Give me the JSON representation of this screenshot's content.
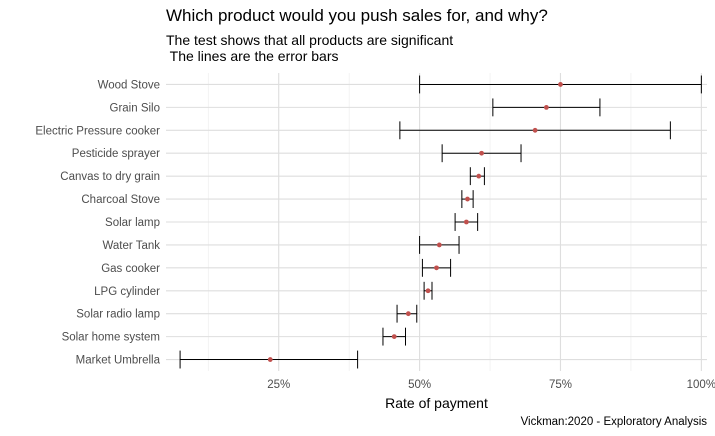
{
  "chart_data": {
    "type": "errorbar",
    "title": "Which product would you push sales for, and why?",
    "subtitle": "The test shows that all products are significant\n The lines are the error bars",
    "xlabel": "Rate of payment",
    "ylabel": "",
    "caption": "Vickman:2020 - Exploratory Analysis",
    "xlim": [
      0.05,
      1.01
    ],
    "xticks": [
      0.25,
      0.5,
      0.75,
      1.0
    ],
    "xtick_labels": [
      "25%",
      "50%",
      "75%",
      "100%"
    ],
    "grid": true,
    "point_color": "#c0504d",
    "products": [
      {
        "name": "Wood Stove",
        "estimate": 0.75,
        "lower": 0.5,
        "upper": 1.0
      },
      {
        "name": "Grain Silo",
        "estimate": 0.725,
        "lower": 0.63,
        "upper": 0.82
      },
      {
        "name": "Electric Pressure cooker",
        "estimate": 0.705,
        "lower": 0.465,
        "upper": 0.945
      },
      {
        "name": "Pesticide sprayer",
        "estimate": 0.61,
        "lower": 0.54,
        "upper": 0.68
      },
      {
        "name": "Canvas to dry grain",
        "estimate": 0.605,
        "lower": 0.59,
        "upper": 0.615
      },
      {
        "name": "Charcoal Stove",
        "estimate": 0.585,
        "lower": 0.575,
        "upper": 0.595
      },
      {
        "name": "Solar lamp",
        "estimate": 0.583,
        "lower": 0.563,
        "upper": 0.603
      },
      {
        "name": "Water Tank",
        "estimate": 0.535,
        "lower": 0.5,
        "upper": 0.57
      },
      {
        "name": "Gas cooker",
        "estimate": 0.53,
        "lower": 0.505,
        "upper": 0.555
      },
      {
        "name": "LPG cylinder",
        "estimate": 0.515,
        "lower": 0.508,
        "upper": 0.522
      },
      {
        "name": "Solar radio lamp",
        "estimate": 0.48,
        "lower": 0.46,
        "upper": 0.495
      },
      {
        "name": "Solar home system",
        "estimate": 0.455,
        "lower": 0.435,
        "upper": 0.475
      },
      {
        "name": "Market Umbrella",
        "estimate": 0.235,
        "lower": 0.075,
        "upper": 0.39
      }
    ]
  }
}
